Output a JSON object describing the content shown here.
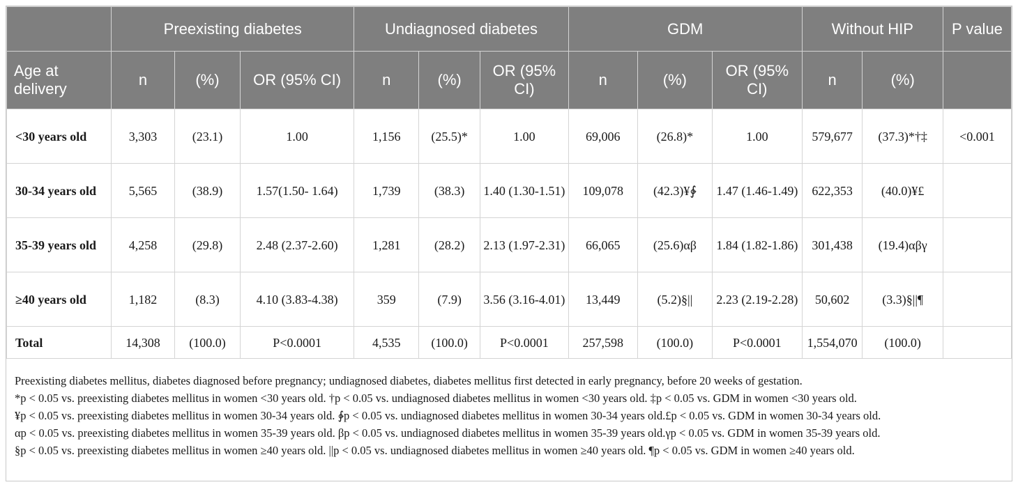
{
  "header": {
    "groups": [
      "Preexisting diabetes",
      "Undiagnosed diabetes",
      "GDM",
      "Without HIP"
    ],
    "p_value": "P value",
    "row_label": "Age at delivery",
    "n": "n",
    "pct": "(%)",
    "or": "OR (95% CI)",
    "or_wrapped": "OR (95% CI)"
  },
  "rows": [
    {
      "label": "<30 years old",
      "cells": [
        "3,303",
        "(23.1)",
        "1.00",
        "1,156",
        "(25.5)*",
        "1.00",
        "69,006",
        "(26.8)*",
        "1.00",
        "579,677",
        "(37.3)*†‡",
        "<0.001"
      ]
    },
    {
      "label": "30-34 years old",
      "cells": [
        "5,565",
        "(38.9)",
        "1.57(1.50- 1.64)",
        "1,739",
        "(38.3)",
        "1.40 (1.30-1.51)",
        "109,078",
        "(42.3)¥∲",
        "1.47 (1.46-1.49)",
        "622,353",
        "(40.0)¥£",
        ""
      ]
    },
    {
      "label": "35-39 years old",
      "cells": [
        "4,258",
        "(29.8)",
        "2.48 (2.37-2.60)",
        "1,281",
        "(28.2)",
        "2.13 (1.97-2.31)",
        "66,065",
        "(25.6)αβ",
        "1.84 (1.82-1.86)",
        "301,438",
        "(19.4)αβγ",
        ""
      ]
    },
    {
      "label": "≥40 years old",
      "cells": [
        "1,182",
        "(8.3)",
        "4.10 (3.83-4.38)",
        "359",
        "(7.9)",
        "3.56 (3.16-4.01)",
        "13,449",
        "(5.2)§||",
        "2.23 (2.19-2.28)",
        "50,602",
        "(3.3)§||¶",
        ""
      ]
    },
    {
      "label": "Total",
      "cells": [
        "14,308",
        "(100.0)",
        "P<0.0001",
        "4,535",
        "(100.0)",
        "P<0.0001",
        "257,598",
        "(100.0)",
        "P<0.0001",
        "1,554,070",
        "(100.0)",
        ""
      ]
    }
  ],
  "notes": [
    "Preexisting diabetes mellitus, diabetes diagnosed before pregnancy; undiagnosed diabetes, diabetes mellitus first detected in early pregnancy, before 20 weeks of gestation.",
    "*p < 0.05 vs. preexisting diabetes mellitus in women <30 years old. †p < 0.05 vs. undiagnosed diabetes mellitus in women <30 years old. ‡p < 0.05 vs. GDM in women <30 years old.",
    "¥p < 0.05 vs. preexisting diabetes mellitus in women 30-34 years old. ∲p < 0.05 vs. undiagnosed diabetes mellitus in women 30-34 years old.£p < 0.05 vs. GDM in women 30-34 years old.",
    "αp < 0.05 vs. preexisting diabetes mellitus in women 35-39 years old. βp < 0.05 vs. undiagnosed diabetes mellitus in women 35-39 years old.γp < 0.05 vs. GDM in women 35-39 years old.",
    "§p < 0.05 vs. preexisting diabetes mellitus in women ≥40 years old. ||p < 0.05 vs. undiagnosed diabetes mellitus in women ≥40 years old. ¶p < 0.05 vs. GDM in women ≥40 years old."
  ],
  "colors": {
    "header_bg": "#7f7f7f",
    "header_text": "#ffffff",
    "grid": "#d4d4d4"
  }
}
